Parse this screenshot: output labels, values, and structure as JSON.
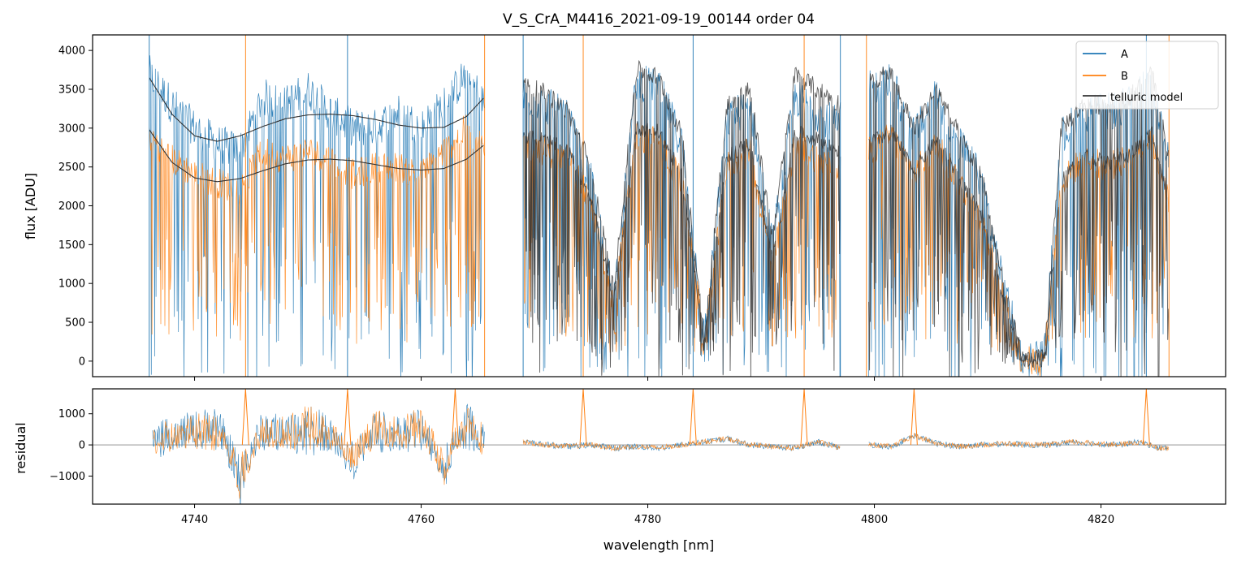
{
  "chart_data": {
    "type": "line",
    "title": "V_S_CrA_M4416_2021-09-19_00144  order 04",
    "xlabel": "wavelength [nm]",
    "xlim": [
      4731,
      4831
    ],
    "xticks": [
      "4740",
      "4760",
      "4780",
      "4800",
      "4820"
    ],
    "legend": {
      "position": "top-right",
      "entries": [
        "A",
        "B",
        "telluric model"
      ]
    },
    "colors": {
      "A": "#1f77b4",
      "B": "#ff7f0e",
      "model": "#333333",
      "axis": "#000000",
      "zero": "#888888"
    },
    "panels": [
      {
        "name": "flux",
        "ylabel": "flux [ADU]",
        "ylim": [
          -200,
          4200
        ],
        "yticks": [
          "0",
          "500",
          "1000",
          "1500",
          "2000",
          "2500",
          "3000",
          "3500",
          "4000"
        ],
        "segments": [
          {
            "x": [
              4736.0,
              4738.0,
              4740.0,
              4742.0,
              4744.0,
              4746.0,
              4748.0,
              4750.0,
              4752.0,
              4754.0,
              4756.0,
              4758.0,
              4760.0,
              4762.0,
              4764.0,
              4765.6
            ],
            "A": [
              3700,
              3300,
              3000,
              2800,
              2700,
              3400,
              3300,
              3500,
              3200,
              3000,
              3000,
              3200,
              3000,
              3300,
              3700,
              3300
            ],
            "B": [
              2900,
              2600,
              2400,
              2300,
              2200,
              2700,
              2600,
              2700,
              2600,
              2400,
              2500,
              2500,
              2400,
              2700,
              3000,
              2700
            ],
            "model_A": [
              3650,
              3180,
              2900,
              2830,
              2900,
              3020,
              3120,
              3170,
              3180,
              3160,
              3110,
              3040,
              3000,
              3010,
              3150,
              3400
            ],
            "model_B": [
              2980,
              2560,
              2360,
              2310,
              2350,
              2450,
              2540,
              2590,
              2600,
              2580,
              2530,
              2480,
              2460,
              2480,
              2600,
              2790
            ]
          },
          {
            "x": [
              4769.0,
              4771.0,
              4773.0,
              4775.0,
              4777.0,
              4779.0,
              4781.0,
              4783.0,
              4785.0,
              4787.0,
              4789.0,
              4791.0,
              4793.0,
              4795.0,
              4797.0
            ],
            "A": [
              3400,
              3300,
              3100,
              2300,
              800,
              3600,
              3500,
              2800,
              300,
              3100,
              3300,
              1500,
              3400,
              3200,
              3000
            ],
            "B": [
              2800,
              2700,
              2600,
              2000,
              700,
              2900,
              2800,
              2300,
              250,
              2500,
              2700,
              1200,
              2800,
              2600,
              2500
            ],
            "model_A": [
              3550,
              3450,
              3200,
              2500,
              900,
              3750,
              3650,
              2900,
              300,
              3300,
              3500,
              1600,
              3700,
              3500,
              3300
            ],
            "model_B": [
              2900,
              2850,
              2700,
              2100,
              750,
              3000,
              2950,
              2400,
              250,
              2650,
              2800,
              1300,
              2950,
              2850,
              2700
            ]
          },
          {
            "x": [
              4799.5,
              4801.5,
              4803.5,
              4805.5,
              4807.5,
              4809.5,
              4811.0,
              4813.0,
              4815.0,
              4816.5,
              4818.5,
              4820.5,
              4822.5,
              4824.5,
              4826.0
            ],
            "A": [
              3500,
              3600,
              2900,
              3400,
              2800,
              2300,
              1200,
              50,
              50,
              2900,
              3200,
              3200,
              3300,
              3600,
              2500
            ],
            "B": [
              2700,
              2900,
              2400,
              2800,
              2300,
              1800,
              1000,
              0,
              0,
              2300,
              2600,
              2500,
              2600,
              2900,
              2000
            ],
            "model_A": [
              3600,
              3700,
              3000,
              3500,
              2900,
              2400,
              1250,
              30,
              30,
              3000,
              3300,
              3300,
              3400,
              3700,
              2600
            ],
            "model_B": [
              2800,
              2950,
              2450,
              2850,
              2350,
              1850,
              1020,
              20,
              20,
              2350,
              2650,
              2550,
              2650,
              2950,
              2050
            ]
          }
        ],
        "spikes": [
          4736.0,
          4744.5,
          4753.5,
          4765.6,
          4769.0,
          4774.3,
          4784.0,
          4793.8,
          4797.0,
          4799.3,
          4824.0,
          4826.0
        ]
      },
      {
        "name": "residual",
        "ylabel": "residual",
        "ylim": [
          -1900,
          1800
        ],
        "yticks": [
          "1000",
          "0",
          "−1000"
        ],
        "ytick_values": [
          1000,
          0,
          -1000
        ],
        "segments": [
          {
            "x": [
              4736.3,
              4738.0,
              4740.0,
              4742.0,
              4744.0,
              4746.0,
              4748.0,
              4750.0,
              4752.0,
              4754.0,
              4756.0,
              4758.0,
              4760.0,
              4762.0,
              4764.0,
              4765.6
            ],
            "A": [
              100,
              300,
              500,
              700,
              -900,
              500,
              400,
              800,
              300,
              -500,
              600,
              400,
              700,
              -700,
              900,
              100
            ],
            "B": [
              100,
              300,
              500,
              700,
              -900,
              500,
              400,
              800,
              300,
              -500,
              600,
              400,
              700,
              -700,
              900,
              100
            ]
          },
          {
            "x": [
              4769.0,
              4771.0,
              4773.0,
              4775.0,
              4777.0,
              4779.0,
              4781.0,
              4783.0,
              4785.0,
              4787.0,
              4789.0,
              4791.0,
              4793.0,
              4795.0,
              4797.0
            ],
            "A": [
              100,
              0,
              -50,
              0,
              -100,
              -50,
              -100,
              0,
              100,
              200,
              0,
              -50,
              -100,
              100,
              -100
            ],
            "B": [
              100,
              0,
              -50,
              0,
              -100,
              -50,
              -100,
              0,
              100,
              200,
              0,
              -50,
              -100,
              100,
              -100
            ]
          },
          {
            "x": [
              4799.5,
              4801.5,
              4803.5,
              4805.5,
              4807.5,
              4809.5,
              4811.5,
              4813.5,
              4815.5,
              4817.5,
              4819.5,
              4821.5,
              4823.5,
              4825.0,
              4826.0
            ],
            "A": [
              0,
              -50,
              300,
              50,
              -50,
              0,
              50,
              0,
              0,
              100,
              50,
              0,
              100,
              -100,
              -100
            ],
            "B": [
              0,
              -50,
              300,
              50,
              -50,
              0,
              50,
              0,
              0,
              100,
              50,
              0,
              100,
              -100,
              -100
            ]
          }
        ],
        "spikes": [
          4744.5,
          4753.5,
          4763.0,
          4774.3,
          4784.0,
          4793.8,
          4803.5,
          4824.0
        ]
      }
    ]
  }
}
